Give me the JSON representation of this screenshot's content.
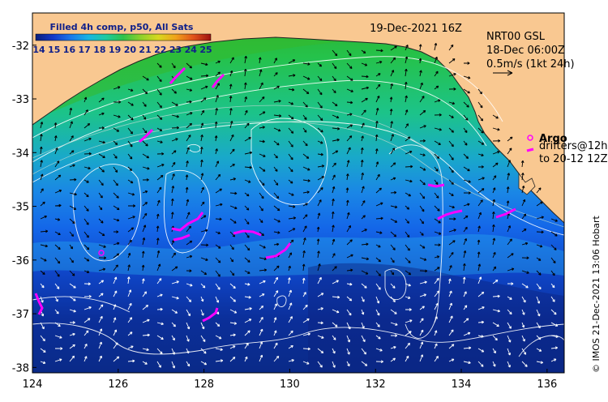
{
  "map": {
    "title_legend": "Filled 4h comp, p50, All Sats",
    "date_label": "19-Dec-2021 16Z",
    "overlay_title": "NRT00 GSL",
    "overlay_date": "18-Dec 06:00Z",
    "velocity_scale": "0.5m/s (1kt 24h)",
    "argo_label": "Argo",
    "drifters_label_1": "drifters@12h",
    "drifters_label_2": "to 20-12 12Z",
    "credit": "© IMOS 21-Dec-2021 13:06 Hobart",
    "colorbar_ticks": [
      "14",
      "15",
      "16",
      "17",
      "18",
      "19",
      "20",
      "21",
      "22",
      "23",
      "24",
      "25"
    ],
    "colorbar_range": [
      14,
      25
    ],
    "lon_ticks": [
      "124",
      "126",
      "128",
      "130",
      "132",
      "134",
      "136"
    ],
    "lat_ticks": [
      "-32",
      "-33",
      "-34",
      "-35",
      "-36",
      "-37",
      "-38"
    ],
    "lon_range": [
      124,
      136.4
    ],
    "lat_range": [
      -31.4,
      -38.1
    ],
    "colors": {
      "land": "#f9c891",
      "coast": "#222222",
      "argo": "#ff00ff",
      "drifter": "#ff00ff",
      "contour": "#ffffff",
      "arrow": "#000000",
      "arrow_white": "#ffffff"
    }
  }
}
